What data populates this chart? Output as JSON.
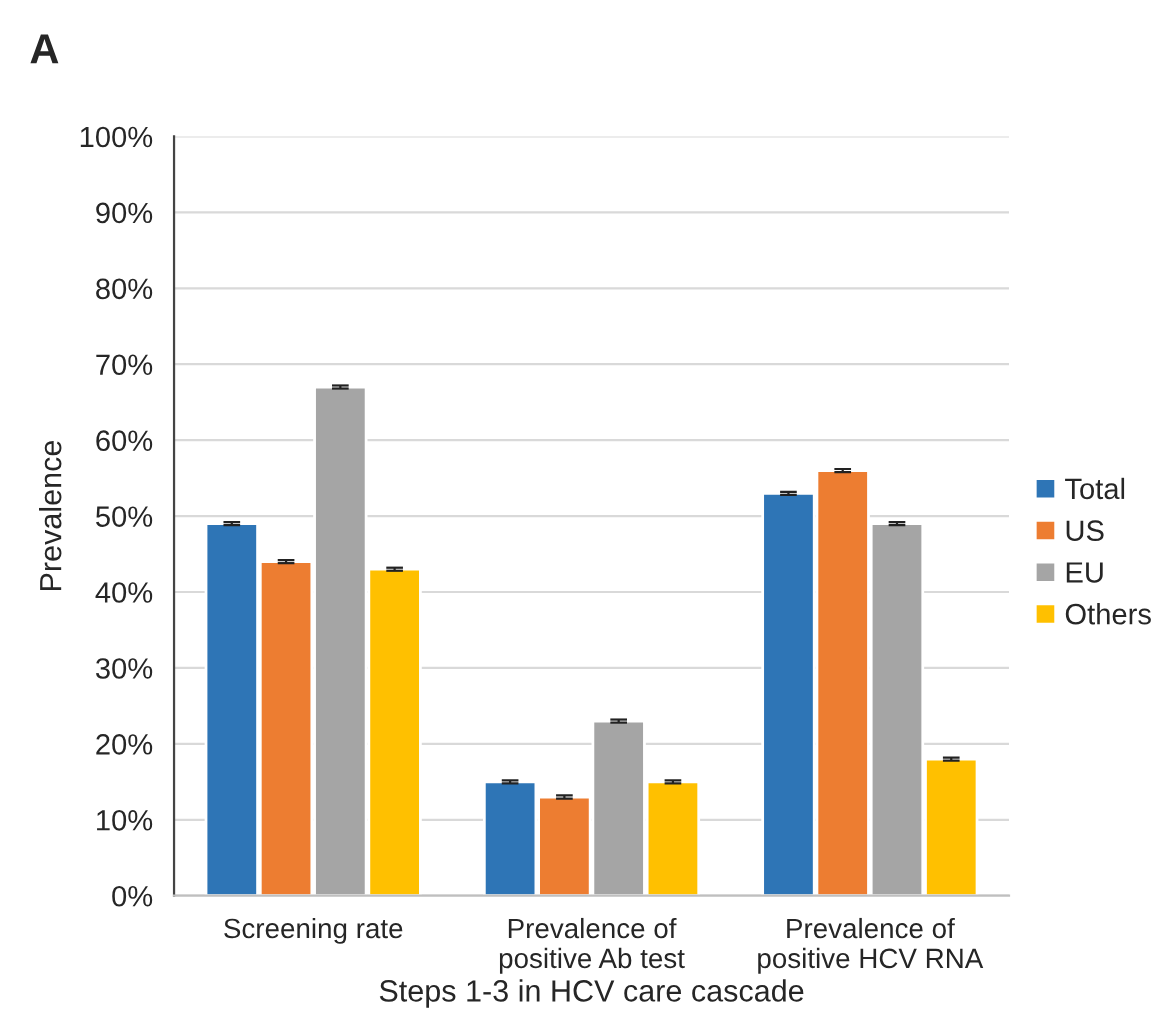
{
  "chart_data": {
    "type": "bar",
    "title": "A",
    "xlabel": "Steps 1-3 in HCV care cascade",
    "ylabel": "Prevalence",
    "categories": [
      "Screening rate",
      "Prevalence of\npositive Ab test",
      "Prevalence of\npositive HCV RNA"
    ],
    "series": [
      {
        "name": "Total",
        "color": "#2e75b6",
        "values": [
          49,
          15,
          53
        ],
        "errors": [
          0.2,
          0.2,
          0.2
        ]
      },
      {
        "name": "US",
        "color": "#ed7d31",
        "values": [
          44,
          13,
          56
        ],
        "errors": [
          0.2,
          0.2,
          0.2
        ]
      },
      {
        "name": "EU",
        "color": "#a5a5a5",
        "values": [
          67,
          23,
          49
        ],
        "errors": [
          0.2,
          0.2,
          0.2
        ]
      },
      {
        "name": "Others",
        "color": "#ffc000",
        "values": [
          43,
          15,
          18
        ],
        "errors": [
          0.2,
          0.2,
          0.2
        ]
      }
    ],
    "ylim": [
      0,
      100
    ],
    "yticks": [
      {
        "value": 0,
        "label": "0%"
      },
      {
        "value": 10,
        "label": "10%"
      },
      {
        "value": 20,
        "label": "20%"
      },
      {
        "value": 30,
        "label": "30%"
      },
      {
        "value": 40,
        "label": "40%"
      },
      {
        "value": 50,
        "label": "50%"
      },
      {
        "value": 60,
        "label": "60%"
      },
      {
        "value": 70,
        "label": "70%"
      },
      {
        "value": 80,
        "label": "80%"
      },
      {
        "value": 90,
        "label": "90%"
      },
      {
        "value": 100,
        "label": "100%"
      }
    ],
    "grid": "y",
    "legend": "right"
  }
}
